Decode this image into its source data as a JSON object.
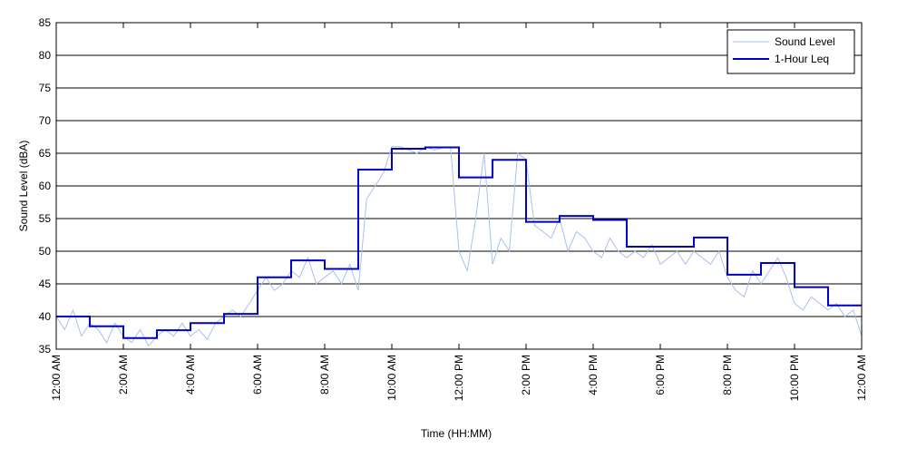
{
  "chart_data": {
    "type": "line",
    "xlabel": "Time (HH:MM)",
    "ylabel": "Sound Level (dBA)",
    "xlim": [
      0,
      24
    ],
    "ylim": [
      35,
      85
    ],
    "xticks": [
      {
        "value": 0,
        "label": "12:00 AM"
      },
      {
        "value": 2,
        "label": "2:00 AM"
      },
      {
        "value": 4,
        "label": "4:00 AM"
      },
      {
        "value": 6,
        "label": "6:00 AM"
      },
      {
        "value": 8,
        "label": "8:00 AM"
      },
      {
        "value": 10,
        "label": "10:00 AM"
      },
      {
        "value": 12,
        "label": "12:00 PM"
      },
      {
        "value": 14,
        "label": "2:00 PM"
      },
      {
        "value": 16,
        "label": "4:00 PM"
      },
      {
        "value": 18,
        "label": "6:00 PM"
      },
      {
        "value": 20,
        "label": "8:00 PM"
      },
      {
        "value": 22,
        "label": "10:00 PM"
      },
      {
        "value": 24,
        "label": "12:00 AM"
      }
    ],
    "yticks": [
      35,
      40,
      45,
      50,
      55,
      60,
      65,
      70,
      75,
      80,
      85
    ],
    "grid": true,
    "legend": "upper right",
    "series": [
      {
        "name": "Sound Level",
        "color": "#a8c0f0",
        "width": 1,
        "x": [
          0,
          0.25,
          0.5,
          0.75,
          1,
          1.25,
          1.5,
          1.75,
          2,
          2.25,
          2.5,
          2.75,
          3,
          3.25,
          3.5,
          3.75,
          4,
          4.25,
          4.5,
          4.75,
          5,
          5.25,
          5.5,
          5.75,
          6,
          6.25,
          6.5,
          6.75,
          7,
          7.25,
          7.5,
          7.75,
          8,
          8.25,
          8.5,
          8.75,
          9,
          9.25,
          9.5,
          9.75,
          10,
          10.25,
          10.5,
          10.75,
          11,
          11.25,
          11.5,
          11.75,
          12,
          12.25,
          12.5,
          12.75,
          13,
          13.25,
          13.5,
          13.75,
          14,
          14.25,
          14.5,
          14.75,
          15,
          15.25,
          15.5,
          15.75,
          16,
          16.25,
          16.5,
          16.75,
          17,
          17.25,
          17.5,
          17.75,
          18,
          18.25,
          18.5,
          18.75,
          19,
          19.25,
          19.5,
          19.75,
          20,
          20.25,
          20.5,
          20.75,
          21,
          21.25,
          21.5,
          21.75,
          22,
          22.25,
          22.5,
          22.75,
          23,
          23.25,
          23.5,
          23.75,
          24
        ],
        "values": [
          40,
          38,
          41,
          37,
          39,
          38,
          36,
          39,
          37,
          36,
          38,
          35.5,
          37,
          38,
          37,
          39,
          37,
          38,
          36.5,
          39,
          40,
          41,
          40,
          42,
          44,
          46,
          44,
          45,
          47,
          46,
          49,
          45,
          46,
          47,
          45,
          48,
          44,
          58,
          60,
          62,
          66,
          66,
          65.5,
          65,
          66,
          65.5,
          65.8,
          66,
          50,
          47,
          55,
          65,
          48,
          52,
          50,
          65,
          64,
          54,
          53,
          52,
          55,
          50,
          53,
          52,
          50,
          49,
          52,
          50,
          49,
          50,
          49,
          51,
          48,
          49,
          50,
          48,
          50,
          49,
          48,
          50,
          46,
          44,
          43,
          47,
          45,
          47,
          49,
          46,
          42,
          41,
          43,
          42,
          41,
          42,
          40,
          41,
          37
        ]
      },
      {
        "name": "1-Hour Leq",
        "color": "#0000cc",
        "width": 2,
        "x": [
          0,
          1,
          1,
          2,
          2,
          3,
          3,
          4,
          4,
          5,
          5,
          6,
          6,
          7,
          7,
          8,
          8,
          9,
          9,
          10,
          10,
          11,
          11,
          12,
          12,
          13,
          13,
          14,
          14,
          15,
          15,
          16,
          16,
          17,
          17,
          18,
          18,
          19,
          19,
          20,
          20,
          21,
          21,
          22,
          22,
          23,
          23,
          24
        ],
        "values": [
          40,
          40,
          38.5,
          38.5,
          36.7,
          36.7,
          37.9,
          37.9,
          39,
          39,
          40.4,
          40.4,
          46,
          46,
          48.6,
          48.6,
          47.3,
          47.3,
          62.5,
          62.5,
          65.7,
          65.7,
          65.9,
          65.9,
          61.3,
          61.3,
          64,
          64,
          54.5,
          54.5,
          55.4,
          55.4,
          54.8,
          54.8,
          50.7,
          50.7,
          50.7,
          50.7,
          52.1,
          52.1,
          46.4,
          46.4,
          48.2,
          48.2,
          44.5,
          44.5,
          41.7,
          41.7
        ]
      }
    ]
  }
}
